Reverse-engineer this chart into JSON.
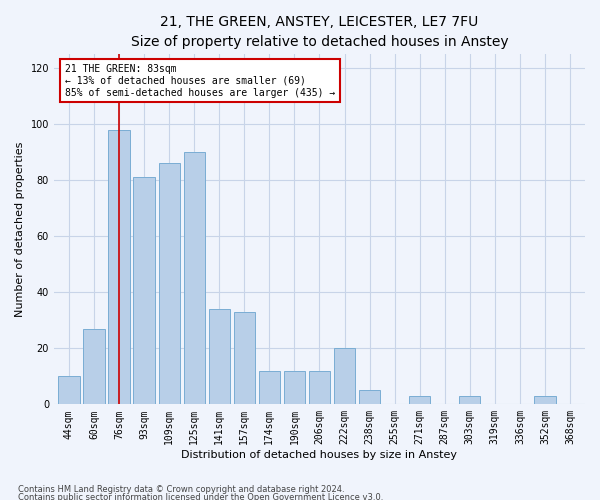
{
  "title": "21, THE GREEN, ANSTEY, LEICESTER, LE7 7FU",
  "subtitle": "Size of property relative to detached houses in Anstey",
  "xlabel": "Distribution of detached houses by size in Anstey",
  "ylabel": "Number of detached properties",
  "categories": [
    "44sqm",
    "60sqm",
    "76sqm",
    "93sqm",
    "109sqm",
    "125sqm",
    "141sqm",
    "157sqm",
    "174sqm",
    "190sqm",
    "206sqm",
    "222sqm",
    "238sqm",
    "255sqm",
    "271sqm",
    "287sqm",
    "303sqm",
    "319sqm",
    "336sqm",
    "352sqm",
    "368sqm"
  ],
  "values": [
    10,
    27,
    98,
    81,
    86,
    90,
    34,
    33,
    12,
    12,
    12,
    20,
    5,
    0,
    3,
    0,
    3,
    0,
    0,
    3,
    0
  ],
  "bar_color": "#b8cfe8",
  "bar_edge_color": "#7aadd4",
  "vline_index": 2,
  "annotation_title": "21 THE GREEN: 83sqm",
  "annotation_line1": "← 13% of detached houses are smaller (69)",
  "annotation_line2": "85% of semi-detached houses are larger (435) →",
  "annotation_box_color": "#ffffff",
  "annotation_box_edge_color": "#cc0000",
  "vline_color": "#cc0000",
  "ylim": [
    0,
    125
  ],
  "yticks": [
    0,
    20,
    40,
    60,
    80,
    100,
    120
  ],
  "footnote1": "Contains HM Land Registry data © Crown copyright and database right 2024.",
  "footnote2": "Contains public sector information licensed under the Open Government Licence v3.0.",
  "bg_color": "#f0f4fc",
  "grid_color": "#c8d4e8",
  "title_fontsize": 10,
  "subtitle_fontsize": 9,
  "axis_label_fontsize": 8,
  "tick_fontsize": 7,
  "annotation_fontsize": 7,
  "footnote_fontsize": 6
}
